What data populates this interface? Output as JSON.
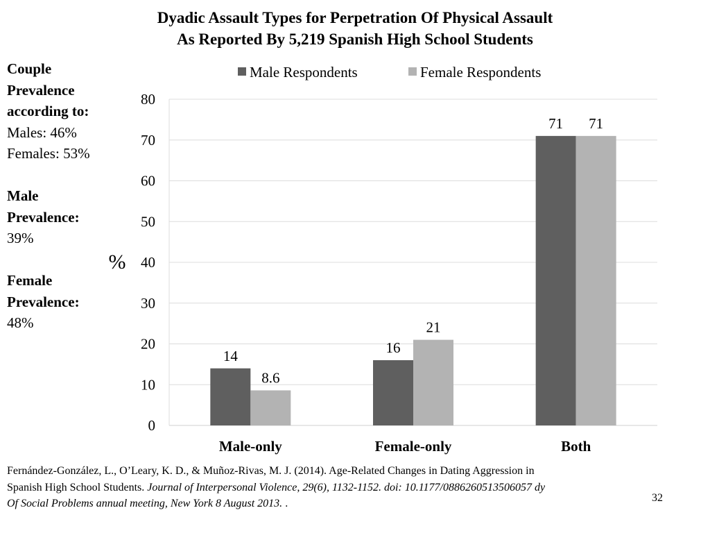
{
  "title": {
    "line1": "Dyadic Assault Types for Perpetration Of Physical Assault",
    "line2": "As Reported By 5,219 Spanish High School Students"
  },
  "sidebar": {
    "couple_head_1": "Couple",
    "couple_head_2": "Prevalence",
    "couple_head_3": "according to:",
    "couple_males": "Males: 46%",
    "couple_females": "Females: 53%",
    "male_head_1": "Male",
    "male_head_2": "Prevalence:",
    "male_value": "39%",
    "female_head_1": "Female",
    "female_head_2": "Prevalence:",
    "female_value": "48%"
  },
  "chart_data": {
    "type": "bar",
    "categories": [
      "Male-only",
      "Female-only",
      "Both"
    ],
    "series": [
      {
        "name": "Male Respondents",
        "values": [
          14,
          16,
          71
        ],
        "labels": [
          "14",
          "16",
          "71"
        ],
        "color": "#5f5f5f"
      },
      {
        "name": "Female Respondents",
        "values": [
          8.6,
          21,
          71
        ],
        "labels": [
          "8.6",
          "21",
          "71"
        ],
        "color": "#b3b3b3"
      }
    ],
    "ylabel": "%",
    "ylim": [
      0,
      80
    ],
    "yticks": [
      0,
      10,
      20,
      30,
      40,
      50,
      60,
      70,
      80
    ],
    "grid": true,
    "legend": "top"
  },
  "footer": {
    "line1": "Fernández-González, L., O’Leary, K. D., & Muñoz-Rivas, M. J. (2014). Age-Related Changes in Dating Aggression in",
    "line2_plain": "Spanish High School Students. ",
    "line2_italic": "Journal of Interpersonal Violence, 29(6), 1132-1152. doi: 10.1177/0886260513506057 dy",
    "line3_italic": "Of Social Problems annual meeting, New York 8 August 2013.",
    "line3_tail": "  ."
  },
  "page_number": "32"
}
